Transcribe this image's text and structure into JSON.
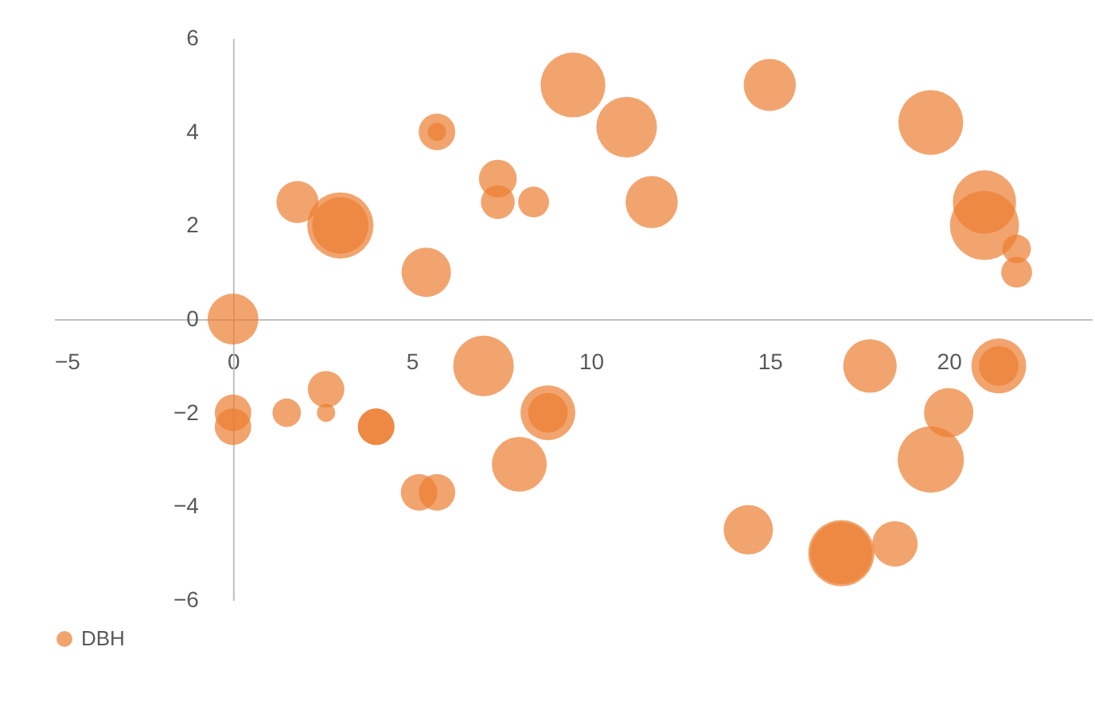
{
  "chart_data": {
    "type": "bubble",
    "legend": "bottom",
    "grid": false,
    "xlim": [
      -5,
      24
    ],
    "xticks": [
      -5,
      0,
      5,
      10,
      15,
      20
    ],
    "ylim": [
      -6,
      6
    ],
    "yticks": [
      -6,
      -4,
      -2,
      0,
      2,
      4,
      6
    ],
    "series": [
      {
        "name": "DBH",
        "color": "#ed7d31",
        "x": [
          0,
          1.8,
          3,
          3,
          5.7,
          5.7,
          5.4,
          7.4,
          7.4,
          8.4,
          9.5,
          11,
          11.7,
          15,
          19.5,
          21,
          21,
          21.9,
          21.9,
          0,
          0,
          1.5,
          2.6,
          2.6,
          4,
          4,
          5.2,
          5.7,
          7,
          8.8,
          8.8,
          8,
          14.4,
          17.8,
          20,
          21.4,
          21.4,
          19.5,
          17,
          17,
          18.5
        ],
        "values": [
          0,
          2.5,
          2,
          2,
          4,
          4,
          1,
          3,
          2.5,
          2.5,
          5,
          4.1,
          2.5,
          5,
          4.2,
          2.5,
          2,
          1.5,
          1,
          -2,
          -2.3,
          -2,
          -1.5,
          -2,
          -2.3,
          -2.3,
          -3.7,
          -3.7,
          -1,
          -2,
          -2,
          -3.1,
          -4.5,
          -1,
          -2,
          -1,
          -1,
          -3,
          -5,
          -5,
          -4.8
        ],
        "sizes": [
          0.54,
          0.37,
          0.67,
          0.92,
          0.28,
          0.07,
          0.51,
          0.3,
          0.24,
          0.2,
          0.88,
          0.77,
          0.57,
          0.57,
          0.88,
          0.84,
          1,
          0.17,
          0.2,
          0.28,
          0.28,
          0.17,
          0.28,
          0.07,
          0.28,
          0.28,
          0.28,
          0.28,
          0.77,
          0.63,
          0.33,
          0.63,
          0.51,
          0.6,
          0.51,
          0.33,
          0.63,
          0.92,
          0.92,
          0.81,
          0.43
        ]
      }
    ]
  }
}
